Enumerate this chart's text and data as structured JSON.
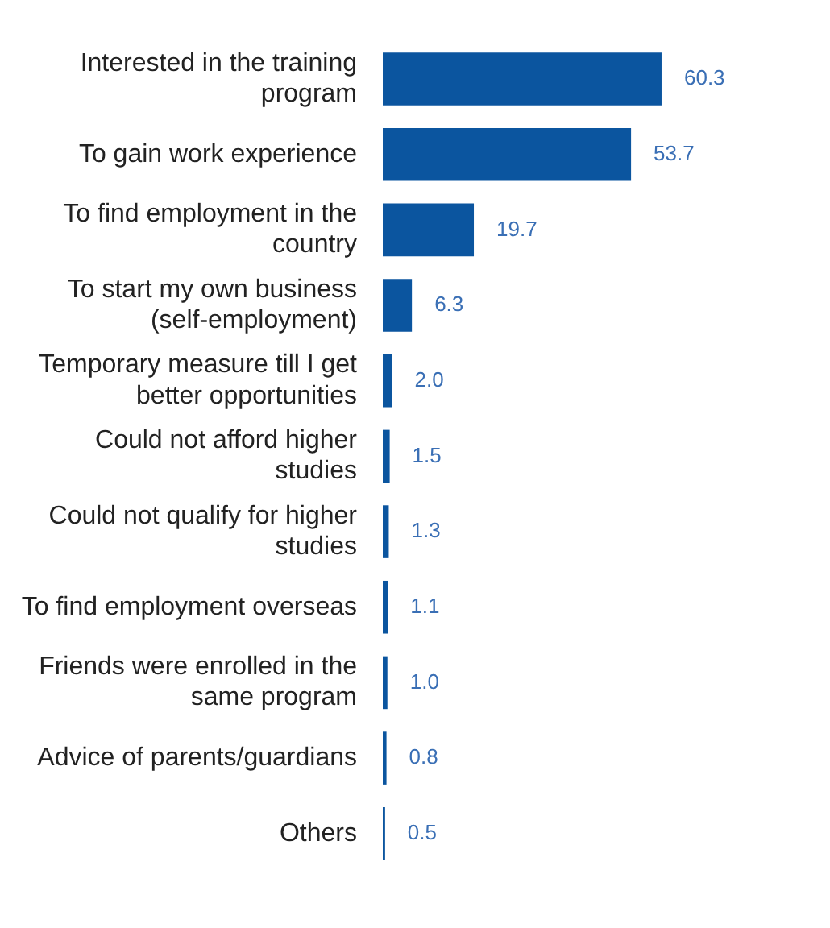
{
  "chart_data": {
    "type": "bar",
    "orientation": "horizontal",
    "categories": [
      "Interested in the training program",
      "To gain work experience",
      "To find employment in the country",
      "To start my own business (self-employment)",
      "Temporary measure till I get better opportunities",
      "Could not afford higher studies",
      "Could not qualify for higher studies",
      "To find employment overseas",
      "Friends were enrolled in the same program",
      "Advice of parents/guardians",
      "Others"
    ],
    "values": [
      60.3,
      53.7,
      19.7,
      6.3,
      2.0,
      1.5,
      1.3,
      1.1,
      1.0,
      0.8,
      0.5
    ],
    "value_labels": [
      "60.3",
      "53.7",
      "19.7",
      "6.3",
      "2.0",
      "1.5",
      "1.3",
      "1.1",
      "1.0",
      "0.8",
      "0.5"
    ],
    "color": "#0b559f",
    "legend": false
  }
}
